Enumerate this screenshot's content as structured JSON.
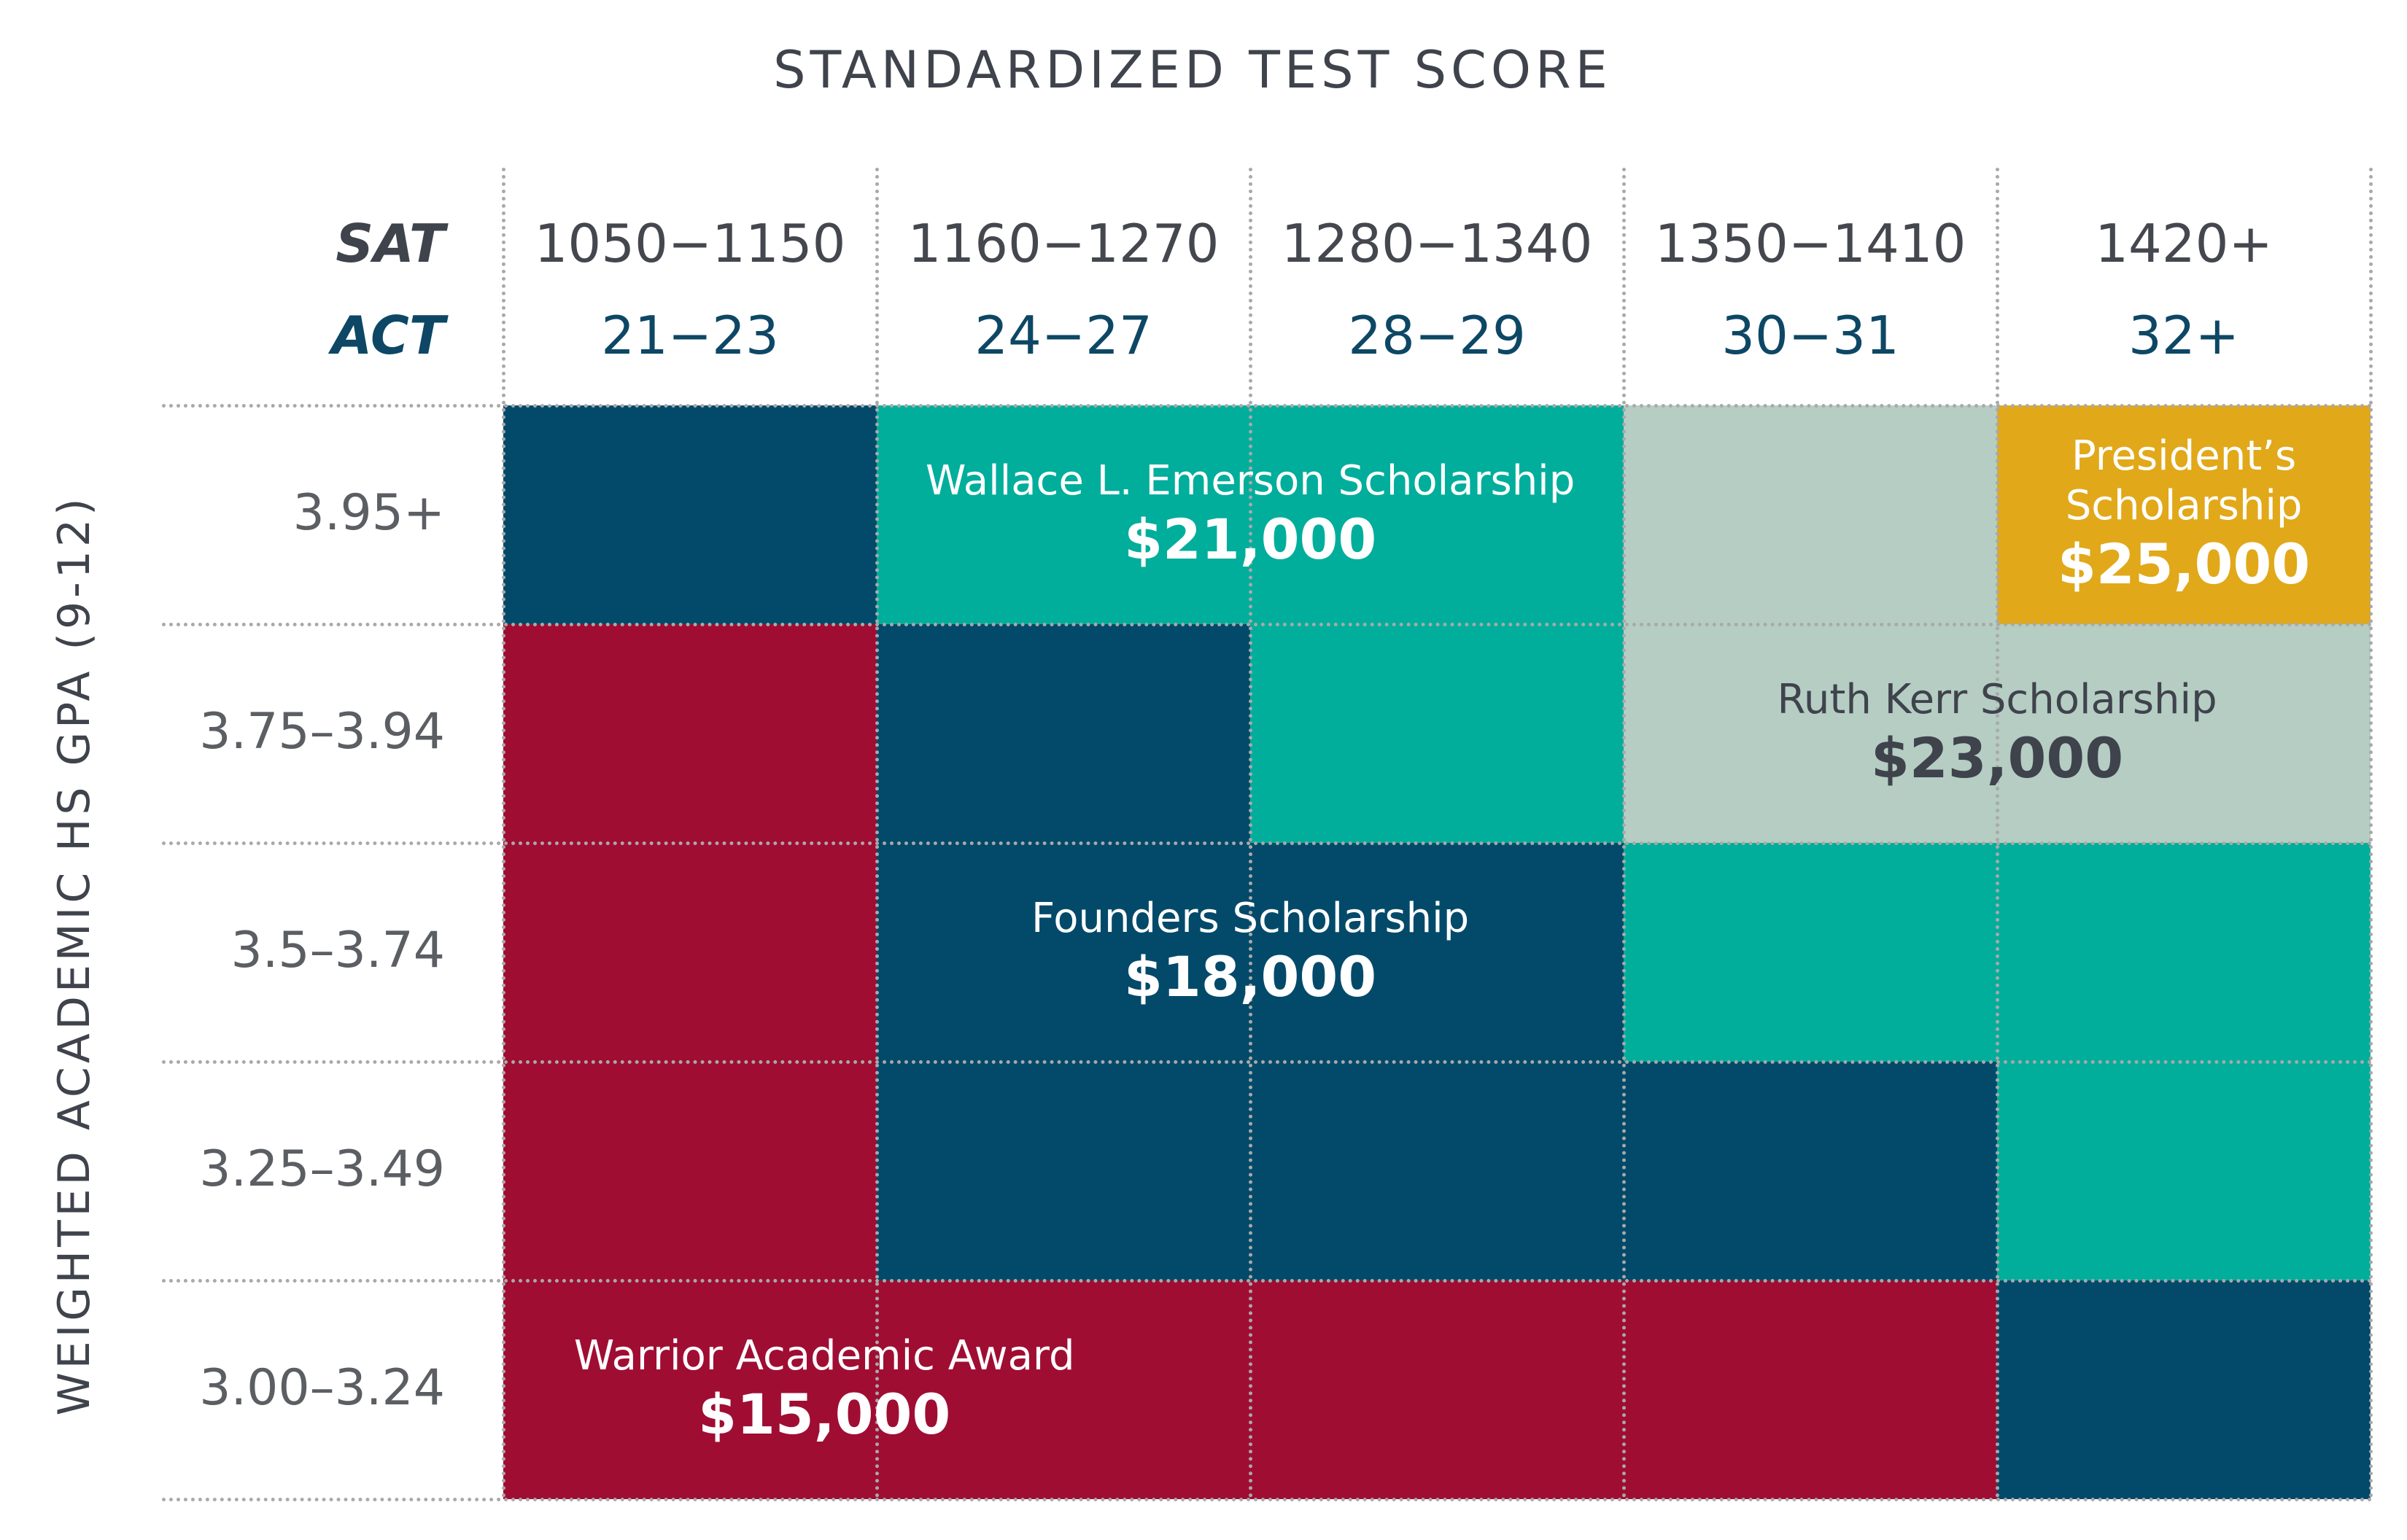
{
  "chart_data": {
    "type": "heatmap",
    "title": "STANDARDIZED TEST SCORE",
    "xlabel": "STANDARDIZED TEST SCORE",
    "ylabel": "WEIGHTED ACADEMIC HS GPA (9-12)",
    "row_header_labels": {
      "sat": "SAT",
      "act": "ACT"
    },
    "columns": [
      {
        "sat": "1050−1150",
        "act": "21−23"
      },
      {
        "sat": "1160−1270",
        "act": "24−27"
      },
      {
        "sat": "1280−1340",
        "act": "28−29"
      },
      {
        "sat": "1350−1410",
        "act": "30−31"
      },
      {
        "sat": "1420+",
        "act": "32+"
      }
    ],
    "rows": [
      "3.95+",
      "3.75–3.94",
      "3.5–3.74",
      "3.25–3.49",
      "3.00–3.24"
    ],
    "awards": {
      "warrior": {
        "name": "Warrior Academic Award",
        "amount": "$15,000",
        "color": "#a00d33",
        "text_color": "#ffffff"
      },
      "founders": {
        "name": "Founders Scholarship",
        "amount": "$18,000",
        "color": "#034a6a",
        "text_color": "#ffffff"
      },
      "emerson": {
        "name": "Wallace L. Emerson Scholarship",
        "amount": "$21,000",
        "color": "#00ae9b",
        "text_color": "#ffffff"
      },
      "kerr": {
        "name": "Ruth Kerr Scholarship",
        "amount": "$23,000",
        "color": "#b5cdc3",
        "text_color": "#3f434c"
      },
      "president": {
        "name": "President’s Scholarship",
        "name_lines": [
          "President’s",
          "Scholarship"
        ],
        "amount": "$25,000",
        "color": "#e1a819",
        "text_color": "#ffffff"
      }
    },
    "grid": [
      [
        "founders",
        "emerson",
        "emerson",
        "kerr",
        "president"
      ],
      [
        "warrior",
        "founders",
        "emerson",
        "kerr",
        "kerr"
      ],
      [
        "warrior",
        "founders",
        "founders",
        "emerson",
        "emerson"
      ],
      [
        "warrior",
        "founders",
        "founders",
        "founders",
        "emerson"
      ],
      [
        "warrior",
        "warrior",
        "warrior",
        "warrior",
        "founders"
      ]
    ],
    "grid_lines": "dotted"
  }
}
